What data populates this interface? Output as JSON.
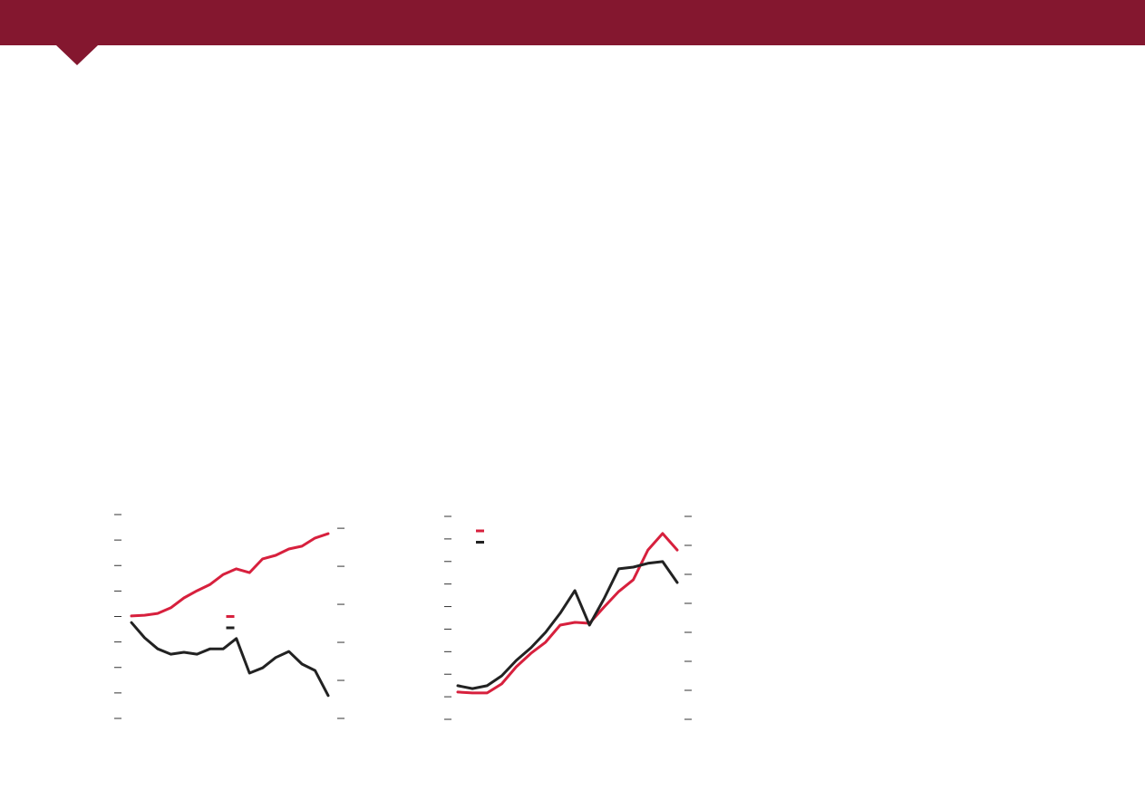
{
  "chart_data": [
    {
      "type": "line",
      "categories": [
        null,
        null,
        null,
        null,
        null,
        null,
        null,
        null,
        null,
        null,
        null,
        null,
        null,
        null,
        null,
        null
      ],
      "ylim": [
        0,
        8
      ],
      "yticks": [
        0,
        1,
        2,
        3,
        4,
        5,
        6,
        7,
        8
      ],
      "y2lim": [
        0,
        5.36
      ],
      "y2ticks": [
        0,
        1,
        2,
        3,
        4,
        5
      ],
      "legend": "center",
      "series": [
        {
          "color": "#d7203d",
          "values": [
            4.02,
            4.05,
            4.12,
            4.34,
            4.73,
            5.01,
            5.26,
            5.65,
            5.87,
            5.72,
            6.26,
            6.4,
            6.65,
            6.76,
            7.08,
            7.25
          ]
        },
        {
          "color": "#222222",
          "axis": "y2",
          "values": [
            2.52,
            2.12,
            1.83,
            1.69,
            1.74,
            1.69,
            1.83,
            1.83,
            2.1,
            1.19,
            1.33,
            1.6,
            1.76,
            1.43,
            1.26,
            0.6
          ]
        }
      ]
    },
    {
      "type": "line",
      "categories": [
        null,
        null,
        null,
        null,
        null,
        null,
        null,
        null,
        null,
        null,
        null,
        null,
        null,
        null,
        null,
        null
      ],
      "ylim": [
        0,
        9
      ],
      "yticks": [
        0,
        1,
        2,
        3,
        4,
        5,
        6,
        7,
        8,
        9
      ],
      "y2lim": [
        0,
        7
      ],
      "y2ticks": [
        0,
        1,
        2,
        3,
        4,
        5,
        6,
        7
      ],
      "legend": "upper left",
      "series": [
        {
          "color": "#d7203d",
          "values": [
            1.21,
            1.17,
            1.17,
            1.57,
            2.33,
            2.93,
            3.42,
            4.18,
            4.3,
            4.26,
            4.98,
            5.67,
            6.19,
            7.51,
            8.24,
            7.51
          ]
        },
        {
          "color": "#222222",
          "axis": "y2",
          "values": [
            1.16,
            1.06,
            1.16,
            1.5,
            2.03,
            2.47,
            3.0,
            3.66,
            4.44,
            3.25,
            4.16,
            5.19,
            5.25,
            5.38,
            5.44,
            4.72
          ]
        }
      ]
    }
  ]
}
